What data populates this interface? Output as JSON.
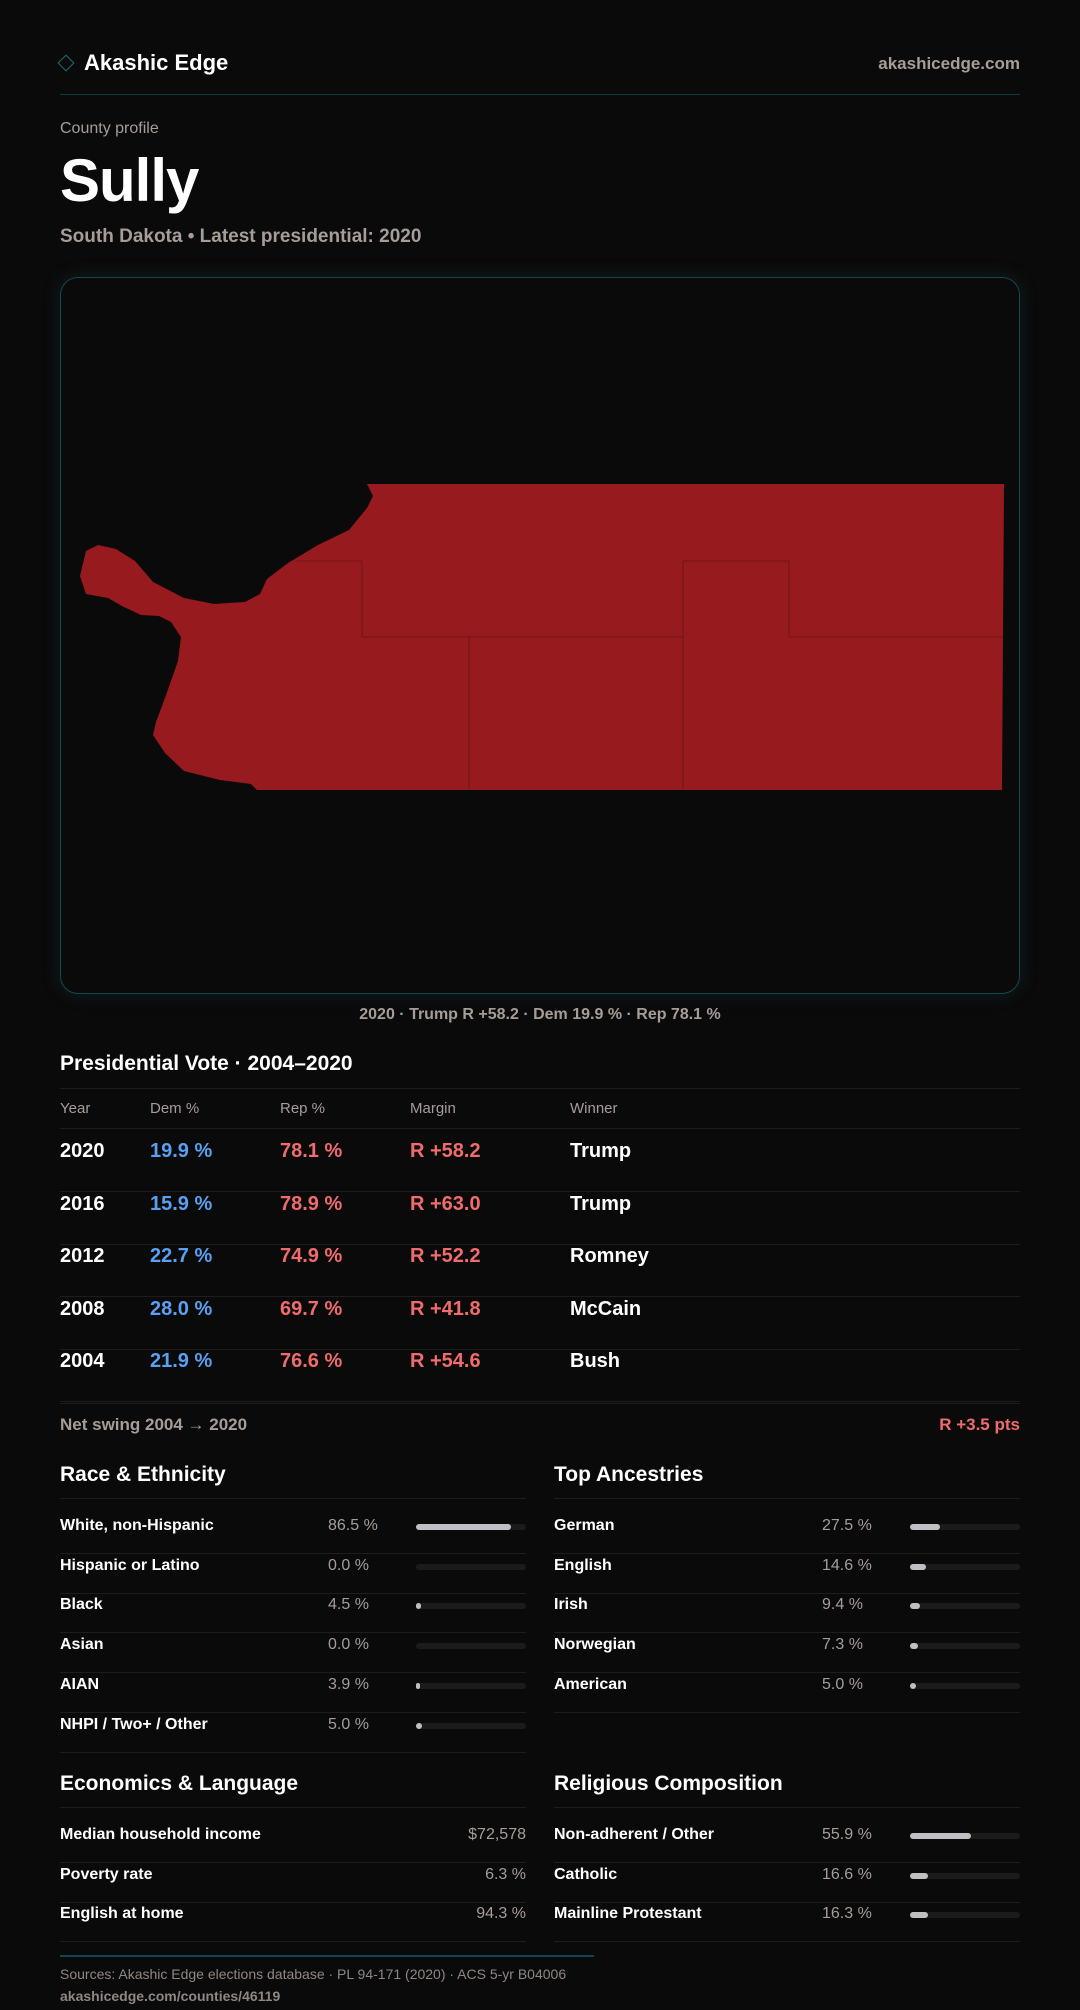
{
  "header": {
    "brand": "Akashic Edge",
    "site": "akashicedge.com"
  },
  "profile": {
    "eyebrow": "County profile",
    "name": "Sully",
    "subtitle": "South Dakota • Latest presidential: 2020"
  },
  "map": {
    "caption": "2020 · Trump R +58.2 · Dem 19.9 % · Rep 78.1 %",
    "fill_color": "#971b1e",
    "winner": "Rep"
  },
  "presidential": {
    "title": "Presidential Vote · 2004–2020",
    "columns": [
      "Year",
      "Dem %",
      "Rep %",
      "Margin",
      "Winner"
    ],
    "rows": [
      {
        "year": "2020",
        "dem": "19.9 %",
        "rep": "78.1 %",
        "margin": "R +58.2",
        "winner": "Trump"
      },
      {
        "year": "2016",
        "dem": "15.9 %",
        "rep": "78.9 %",
        "margin": "R +63.0",
        "winner": "Trump"
      },
      {
        "year": "2012",
        "dem": "22.7 %",
        "rep": "74.9 %",
        "margin": "R +52.2",
        "winner": "Romney"
      },
      {
        "year": "2008",
        "dem": "28.0 %",
        "rep": "69.7 %",
        "margin": "R +41.8",
        "winner": "McCain"
      },
      {
        "year": "2004",
        "dem": "21.9 %",
        "rep": "76.6 %",
        "margin": "R +54.6",
        "winner": "Bush"
      }
    ],
    "swing_label": "Net swing 2004 → 2020",
    "swing_value": "R +3.5 pts"
  },
  "race": {
    "title": "Race & Ethnicity",
    "rows": [
      {
        "label": "White, non-Hispanic",
        "value": "86.5 %",
        "pct": 86.5
      },
      {
        "label": "Hispanic or Latino",
        "value": "0.0 %",
        "pct": 0
      },
      {
        "label": "Black",
        "value": "4.5 %",
        "pct": 4.5
      },
      {
        "label": "Asian",
        "value": "0.0 %",
        "pct": 0
      },
      {
        "label": "AIAN",
        "value": "3.9 %",
        "pct": 3.9
      },
      {
        "label": "NHPI / Two+ / Other",
        "value": "5.0 %",
        "pct": 5.0
      }
    ]
  },
  "ancestry": {
    "title": "Top Ancestries",
    "rows": [
      {
        "label": "German",
        "value": "27.5 %",
        "pct": 27.5
      },
      {
        "label": "English",
        "value": "14.6 %",
        "pct": 14.6
      },
      {
        "label": "Irish",
        "value": "9.4 %",
        "pct": 9.4
      },
      {
        "label": "Norwegian",
        "value": "7.3 %",
        "pct": 7.3
      },
      {
        "label": "American",
        "value": "5.0 %",
        "pct": 5.0
      }
    ]
  },
  "economics": {
    "title": "Economics & Language",
    "rows": [
      {
        "label": "Median household income",
        "value": "$72,578"
      },
      {
        "label": "Poverty rate",
        "value": "6.3 %"
      },
      {
        "label": "English at home",
        "value": "94.3 %"
      }
    ]
  },
  "religion": {
    "title": "Religious Composition",
    "rows": [
      {
        "label": "Non-adherent / Other",
        "value": "55.9 %",
        "pct": 55.9
      },
      {
        "label": "Catholic",
        "value": "16.6 %",
        "pct": 16.6
      },
      {
        "label": "Mainline Protestant",
        "value": "16.3 %",
        "pct": 16.3
      }
    ]
  },
  "footer": {
    "sources": "Sources: Akashic Edge elections database · PL 94-171 (2020) · ACS 5-yr B04006",
    "url": "akashicedge.com/counties/46119"
  }
}
